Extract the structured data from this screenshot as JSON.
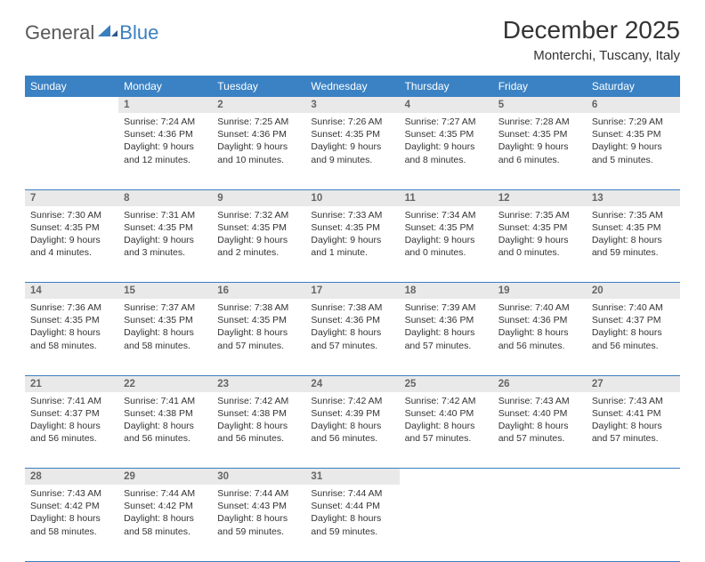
{
  "brand": {
    "name_a": "General",
    "name_b": "Blue"
  },
  "header": {
    "month_title": "December 2025",
    "location": "Monterchi, Tuscany, Italy"
  },
  "style": {
    "header_bg": "#3b82c4",
    "header_fg": "#ffffff",
    "daynum_bg": "#e9e9e9",
    "daynum_fg": "#666666",
    "rule_color": "#3b7fbf",
    "body_fg": "#333333",
    "page_bg": "#ffffff",
    "th_fontsize": 12,
    "daynum_fontsize": 11.5,
    "cell_fontsize": 10.5,
    "title_fontsize": 28,
    "location_fontsize": 15
  },
  "weekdays": [
    "Sunday",
    "Monday",
    "Tuesday",
    "Wednesday",
    "Thursday",
    "Friday",
    "Saturday"
  ],
  "weeks": [
    [
      null,
      {
        "day": "1",
        "sunrise": "Sunrise: 7:24 AM",
        "sunset": "Sunset: 4:36 PM",
        "dl1": "Daylight: 9 hours",
        "dl2": "and 12 minutes."
      },
      {
        "day": "2",
        "sunrise": "Sunrise: 7:25 AM",
        "sunset": "Sunset: 4:36 PM",
        "dl1": "Daylight: 9 hours",
        "dl2": "and 10 minutes."
      },
      {
        "day": "3",
        "sunrise": "Sunrise: 7:26 AM",
        "sunset": "Sunset: 4:35 PM",
        "dl1": "Daylight: 9 hours",
        "dl2": "and 9 minutes."
      },
      {
        "day": "4",
        "sunrise": "Sunrise: 7:27 AM",
        "sunset": "Sunset: 4:35 PM",
        "dl1": "Daylight: 9 hours",
        "dl2": "and 8 minutes."
      },
      {
        "day": "5",
        "sunrise": "Sunrise: 7:28 AM",
        "sunset": "Sunset: 4:35 PM",
        "dl1": "Daylight: 9 hours",
        "dl2": "and 6 minutes."
      },
      {
        "day": "6",
        "sunrise": "Sunrise: 7:29 AM",
        "sunset": "Sunset: 4:35 PM",
        "dl1": "Daylight: 9 hours",
        "dl2": "and 5 minutes."
      }
    ],
    [
      {
        "day": "7",
        "sunrise": "Sunrise: 7:30 AM",
        "sunset": "Sunset: 4:35 PM",
        "dl1": "Daylight: 9 hours",
        "dl2": "and 4 minutes."
      },
      {
        "day": "8",
        "sunrise": "Sunrise: 7:31 AM",
        "sunset": "Sunset: 4:35 PM",
        "dl1": "Daylight: 9 hours",
        "dl2": "and 3 minutes."
      },
      {
        "day": "9",
        "sunrise": "Sunrise: 7:32 AM",
        "sunset": "Sunset: 4:35 PM",
        "dl1": "Daylight: 9 hours",
        "dl2": "and 2 minutes."
      },
      {
        "day": "10",
        "sunrise": "Sunrise: 7:33 AM",
        "sunset": "Sunset: 4:35 PM",
        "dl1": "Daylight: 9 hours",
        "dl2": "and 1 minute."
      },
      {
        "day": "11",
        "sunrise": "Sunrise: 7:34 AM",
        "sunset": "Sunset: 4:35 PM",
        "dl1": "Daylight: 9 hours",
        "dl2": "and 0 minutes."
      },
      {
        "day": "12",
        "sunrise": "Sunrise: 7:35 AM",
        "sunset": "Sunset: 4:35 PM",
        "dl1": "Daylight: 9 hours",
        "dl2": "and 0 minutes."
      },
      {
        "day": "13",
        "sunrise": "Sunrise: 7:35 AM",
        "sunset": "Sunset: 4:35 PM",
        "dl1": "Daylight: 8 hours",
        "dl2": "and 59 minutes."
      }
    ],
    [
      {
        "day": "14",
        "sunrise": "Sunrise: 7:36 AM",
        "sunset": "Sunset: 4:35 PM",
        "dl1": "Daylight: 8 hours",
        "dl2": "and 58 minutes."
      },
      {
        "day": "15",
        "sunrise": "Sunrise: 7:37 AM",
        "sunset": "Sunset: 4:35 PM",
        "dl1": "Daylight: 8 hours",
        "dl2": "and 58 minutes."
      },
      {
        "day": "16",
        "sunrise": "Sunrise: 7:38 AM",
        "sunset": "Sunset: 4:35 PM",
        "dl1": "Daylight: 8 hours",
        "dl2": "and 57 minutes."
      },
      {
        "day": "17",
        "sunrise": "Sunrise: 7:38 AM",
        "sunset": "Sunset: 4:36 PM",
        "dl1": "Daylight: 8 hours",
        "dl2": "and 57 minutes."
      },
      {
        "day": "18",
        "sunrise": "Sunrise: 7:39 AM",
        "sunset": "Sunset: 4:36 PM",
        "dl1": "Daylight: 8 hours",
        "dl2": "and 57 minutes."
      },
      {
        "day": "19",
        "sunrise": "Sunrise: 7:40 AM",
        "sunset": "Sunset: 4:36 PM",
        "dl1": "Daylight: 8 hours",
        "dl2": "and 56 minutes."
      },
      {
        "day": "20",
        "sunrise": "Sunrise: 7:40 AM",
        "sunset": "Sunset: 4:37 PM",
        "dl1": "Daylight: 8 hours",
        "dl2": "and 56 minutes."
      }
    ],
    [
      {
        "day": "21",
        "sunrise": "Sunrise: 7:41 AM",
        "sunset": "Sunset: 4:37 PM",
        "dl1": "Daylight: 8 hours",
        "dl2": "and 56 minutes."
      },
      {
        "day": "22",
        "sunrise": "Sunrise: 7:41 AM",
        "sunset": "Sunset: 4:38 PM",
        "dl1": "Daylight: 8 hours",
        "dl2": "and 56 minutes."
      },
      {
        "day": "23",
        "sunrise": "Sunrise: 7:42 AM",
        "sunset": "Sunset: 4:38 PM",
        "dl1": "Daylight: 8 hours",
        "dl2": "and 56 minutes."
      },
      {
        "day": "24",
        "sunrise": "Sunrise: 7:42 AM",
        "sunset": "Sunset: 4:39 PM",
        "dl1": "Daylight: 8 hours",
        "dl2": "and 56 minutes."
      },
      {
        "day": "25",
        "sunrise": "Sunrise: 7:42 AM",
        "sunset": "Sunset: 4:40 PM",
        "dl1": "Daylight: 8 hours",
        "dl2": "and 57 minutes."
      },
      {
        "day": "26",
        "sunrise": "Sunrise: 7:43 AM",
        "sunset": "Sunset: 4:40 PM",
        "dl1": "Daylight: 8 hours",
        "dl2": "and 57 minutes."
      },
      {
        "day": "27",
        "sunrise": "Sunrise: 7:43 AM",
        "sunset": "Sunset: 4:41 PM",
        "dl1": "Daylight: 8 hours",
        "dl2": "and 57 minutes."
      }
    ],
    [
      {
        "day": "28",
        "sunrise": "Sunrise: 7:43 AM",
        "sunset": "Sunset: 4:42 PM",
        "dl1": "Daylight: 8 hours",
        "dl2": "and 58 minutes."
      },
      {
        "day": "29",
        "sunrise": "Sunrise: 7:44 AM",
        "sunset": "Sunset: 4:42 PM",
        "dl1": "Daylight: 8 hours",
        "dl2": "and 58 minutes."
      },
      {
        "day": "30",
        "sunrise": "Sunrise: 7:44 AM",
        "sunset": "Sunset: 4:43 PM",
        "dl1": "Daylight: 8 hours",
        "dl2": "and 59 minutes."
      },
      {
        "day": "31",
        "sunrise": "Sunrise: 7:44 AM",
        "sunset": "Sunset: 4:44 PM",
        "dl1": "Daylight: 8 hours",
        "dl2": "and 59 minutes."
      },
      null,
      null,
      null
    ]
  ]
}
